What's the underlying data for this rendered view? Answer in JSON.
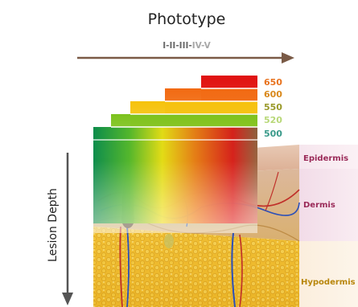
{
  "title": "Phototype",
  "phototype_scale": [
    "I",
    "II",
    "III",
    "IV",
    "V"
  ],
  "phototype_separator": "-",
  "y_axis_label": "Lesion Depth",
  "wavelengths": [
    {
      "value": "650",
      "color": "#e8731f"
    },
    {
      "value": "600",
      "color": "#d9891c"
    },
    {
      "value": "550",
      "color": "#9a9a2a"
    },
    {
      "value": "520",
      "color": "#b8d878"
    },
    {
      "value": "500",
      "color": "#3a9a8a"
    }
  ],
  "layers": [
    {
      "name": "Epidermis",
      "color": "#9a2a58"
    },
    {
      "name": "Dermis",
      "color": "#9a2a58"
    },
    {
      "name": "Hypodermis",
      "color": "#b8860b"
    }
  ],
  "colors": {
    "arrow": "#7a5a46",
    "scale_dark": "#6a6a6a",
    "scale_light": "#a8a8a8",
    "text": "#222222"
  }
}
